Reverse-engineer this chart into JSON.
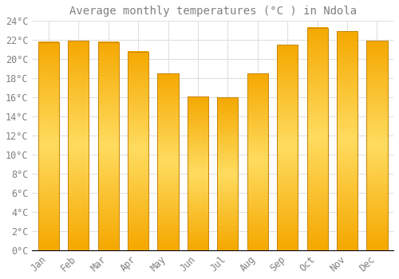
{
  "title": "Average monthly temperatures (°C ) in Ndola",
  "months": [
    "Jan",
    "Feb",
    "Mar",
    "Apr",
    "May",
    "Jun",
    "Jul",
    "Aug",
    "Sep",
    "Oct",
    "Nov",
    "Dec"
  ],
  "values": [
    21.8,
    21.9,
    21.8,
    20.8,
    18.5,
    16.1,
    16.0,
    18.5,
    21.5,
    23.3,
    22.9,
    21.9
  ],
  "bar_color_left": "#F5A800",
  "bar_color_center": "#FFD966",
  "bar_color_right": "#F5A800",
  "bar_edge_color": "#C8860A",
  "background_color": "#FFFFFF",
  "grid_color": "#E0E0E0",
  "text_color": "#808080",
  "ylim": [
    0,
    24
  ],
  "ytick_step": 2,
  "title_fontsize": 10,
  "tick_fontsize": 8.5,
  "bar_width": 0.7
}
